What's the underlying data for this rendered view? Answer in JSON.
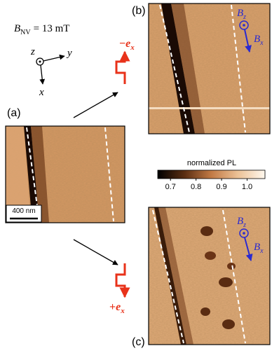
{
  "figure": {
    "field_label": {
      "symbol": "B",
      "sub": "NV",
      "rest": "= 13 mT"
    },
    "axes": {
      "z": "z",
      "y": "y",
      "x": "x"
    },
    "panels": [
      {
        "label": "(a)",
        "scale_bar": "400 nm"
      },
      {
        "label": "(b)",
        "current": {
          "sign": "−",
          "symbol": "e",
          "sub": "x"
        },
        "field_z": {
          "symbol": "B",
          "sub": "z"
        },
        "field_x": {
          "symbol": "B",
          "sub": "x"
        }
      },
      {
        "label": "(c)",
        "current": {
          "sign": "+",
          "symbol": "e",
          "sub": "x"
        },
        "field_z": {
          "symbol": "B",
          "sub": "z"
        },
        "field_x": {
          "symbol": "B",
          "sub": "x"
        }
      }
    ],
    "colorbar": {
      "label": "normalized PL",
      "range": [
        0.65,
        1.07
      ],
      "ticks": [
        0.7,
        0.8,
        0.9,
        {
          "value": 1.0,
          "label": "1.0"
        }
      ]
    }
  }
}
